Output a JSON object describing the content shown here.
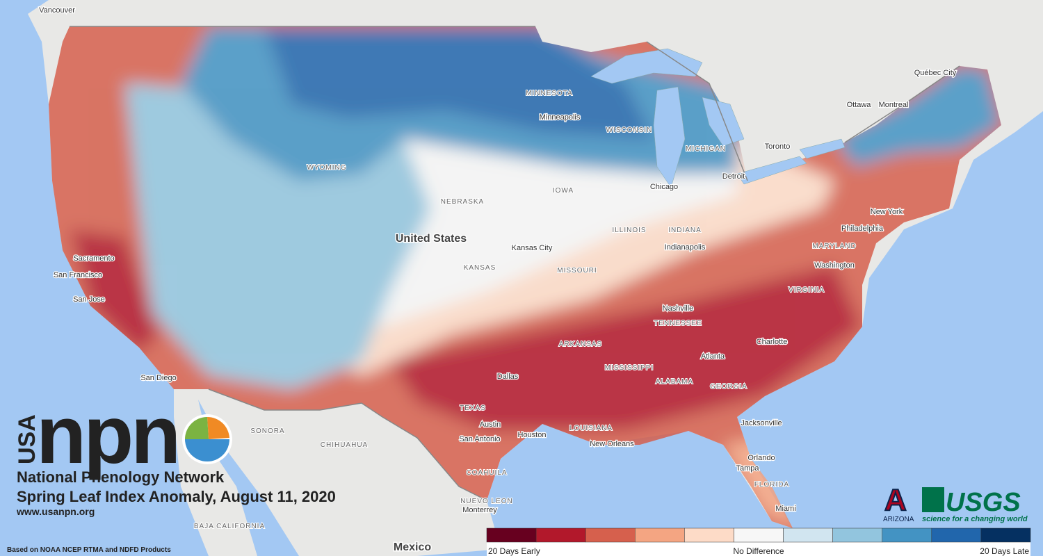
{
  "map": {
    "place_labels": [
      "Vancouver",
      "MINNESOTA",
      "Minneapolis",
      "WISCONSIN",
      "MICHIGAN",
      "WYOMING",
      "IOWA",
      "NEBRASKA",
      "Chicago",
      "Detroit",
      "Toronto",
      "Ottawa",
      "Montreal",
      "Québec City",
      "United States",
      "ILLINOIS",
      "INDIANA",
      "Indianapolis",
      "Kansas City",
      "KANSAS",
      "MISSOURI",
      "New York",
      "Philadelphia",
      "MARYLAND",
      "Washington",
      "VIRGINIA",
      "Nashville",
      "TENNESSEE",
      "ARKANSAS",
      "Charlotte",
      "Atlanta",
      "MISSISSIPPI",
      "ALABAMA",
      "GEORGIA",
      "Dallas",
      "TEXAS",
      "Austin",
      "San Antonio",
      "Houston",
      "LOUISIANA",
      "New Orleans",
      "Jacksonville",
      "Orlando",
      "Tampa",
      "FLORIDA",
      "Miami",
      "Sacramento",
      "San Francisco",
      "San Jose",
      "San Diego",
      "SONORA",
      "CHIHUAHUA",
      "COAHUILA",
      "NUEVO LEON",
      "Monterrey",
      "BAJA CALIFORNIA",
      "Mexico"
    ]
  },
  "logos": {
    "usa": "USA",
    "npn": "npn",
    "network": "National Phenology Network",
    "arizona": "ARIZONA",
    "usgs": "USGS",
    "usgs_tagline": "science for a changing world"
  },
  "title": "Spring Leaf Index Anomaly, August 11, 2020",
  "url": "www.usanpn.org",
  "credit": "Based on NOAA NCEP RTMA and NDFD Products",
  "legend": {
    "colors": [
      "#67001f",
      "#b2182b",
      "#d6604d",
      "#f4a582",
      "#fddbc7",
      "#f7f7f7",
      "#d1e5f0",
      "#92c5de",
      "#4393c3",
      "#2166ac",
      "#053061"
    ],
    "labels": [
      "20 Days Early",
      "No Difference",
      "20 Days Late"
    ]
  }
}
